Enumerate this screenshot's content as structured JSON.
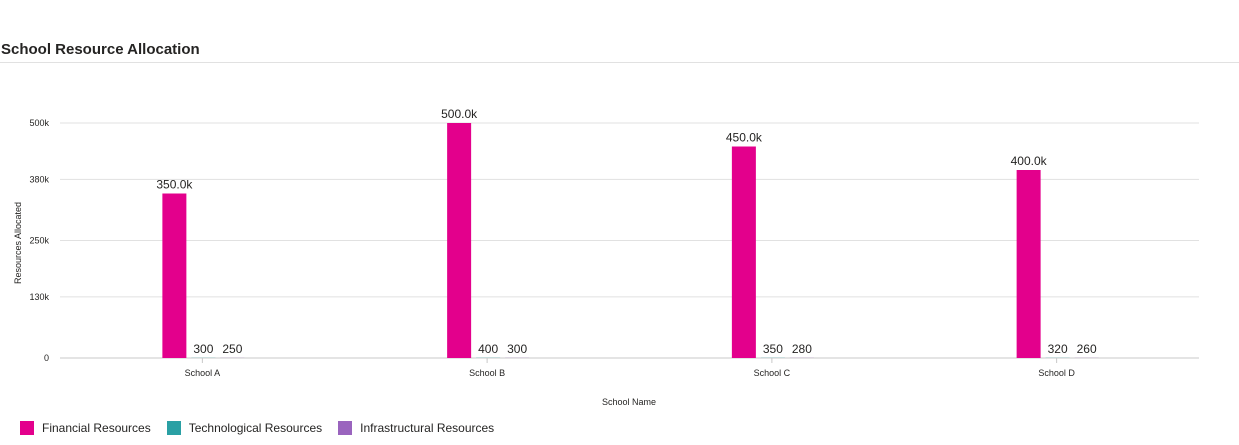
{
  "chart_data": {
    "type": "bar",
    "title": "School Resource Allocation",
    "xlabel": "School Name",
    "ylabel": "Resources Allocated",
    "categories": [
      "School A",
      "School B",
      "School C",
      "School D"
    ],
    "yticks": [
      0,
      130000,
      250000,
      380000,
      500000
    ],
    "ytick_labels": [
      "0",
      "130k",
      "250k",
      "380k",
      "500k"
    ],
    "ylim": [
      0,
      500000
    ],
    "grid": true,
    "legend_position": "bottom-left",
    "series": [
      {
        "name": "Financial Resources",
        "color": "#E3008C",
        "values": [
          350000,
          500000,
          450000,
          400000
        ],
        "labels": [
          "350.0k",
          "500.0k",
          "450.0k",
          "400.0k"
        ]
      },
      {
        "name": "Technological Resources",
        "color": "#2AA0A4",
        "values": [
          300,
          400,
          350,
          320
        ],
        "labels": [
          "300",
          "400",
          "350",
          "320"
        ]
      },
      {
        "name": "Infrastructural Resources",
        "color": "#9A64BE",
        "values": [
          250,
          300,
          280,
          260
        ],
        "labels": [
          "250",
          "300",
          "280",
          "260"
        ]
      }
    ]
  }
}
